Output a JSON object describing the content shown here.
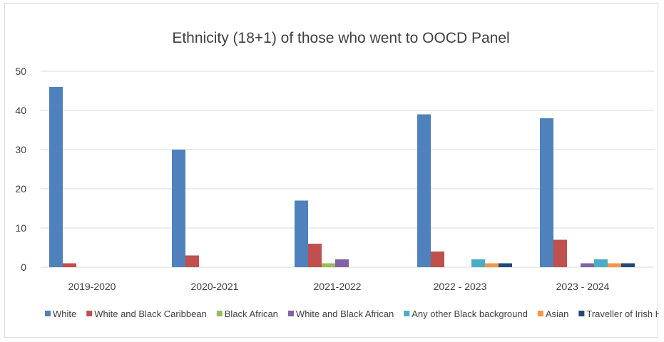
{
  "chart_data": {
    "type": "bar",
    "title": "Ethnicity (18+1) of those who went to OOCD Panel",
    "xlabel": "",
    "ylabel": "",
    "ylim": [
      0,
      50
    ],
    "yticks": [
      0,
      10,
      20,
      30,
      40,
      50
    ],
    "grid": true,
    "legend_position": "bottom",
    "categories": [
      "2019-2020",
      "2020-2021",
      "2021-2022",
      "2022 - 2023",
      "2023 - 2024"
    ],
    "series": [
      {
        "name": "White",
        "color": "#4f81bd",
        "values": [
          46,
          30,
          17,
          39,
          38
        ]
      },
      {
        "name": "White and Black Caribbean",
        "color": "#c0504d",
        "values": [
          1,
          3,
          6,
          4,
          7
        ]
      },
      {
        "name": "Black African",
        "color": "#9bbb59",
        "values": [
          0,
          0,
          1,
          0,
          0
        ]
      },
      {
        "name": "White and Black African",
        "color": "#8064a2",
        "values": [
          0,
          0,
          2,
          0,
          1
        ]
      },
      {
        "name": "Any other Black background",
        "color": "#4bacc6",
        "values": [
          0,
          0,
          0,
          2,
          2
        ]
      },
      {
        "name": "Asian",
        "color": "#f79646",
        "values": [
          0,
          0,
          0,
          1,
          1
        ]
      },
      {
        "name": "Traveller of Irish Heritage",
        "color": "#1f497d",
        "values": [
          0,
          0,
          0,
          1,
          1
        ]
      }
    ]
  }
}
